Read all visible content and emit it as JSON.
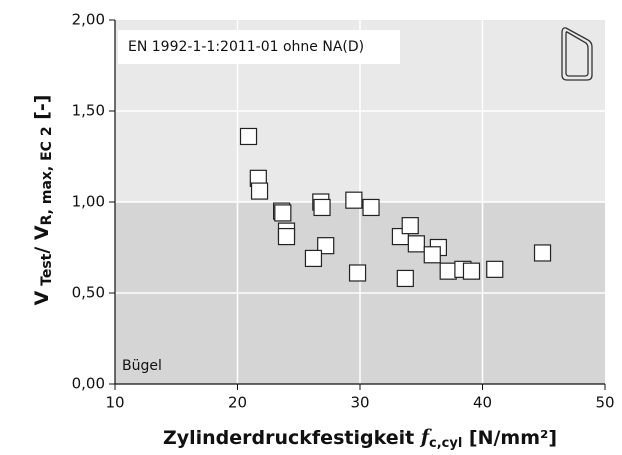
{
  "chart_data": {
    "type": "scatter",
    "annotations": [
      "EN 1992-1-1:2011-01 ohne NA(D)",
      "Bügel"
    ],
    "xlabel": [
      "Zylinderdruckfestigkeit ",
      "f",
      "c,cyl",
      "  [N/mm²]"
    ],
    "ylabel": [
      "V",
      " Test",
      "/ V",
      "R, max, EC 2",
      " [-]"
    ],
    "xlim": [
      10,
      50
    ],
    "xticks": [
      10,
      20,
      30,
      40,
      50
    ],
    "ylim": [
      0,
      2
    ],
    "yticks": [
      {
        "value": 0,
        "label": "0,00"
      },
      {
        "value": 0.5,
        "label": "0,50"
      },
      {
        "value": 1,
        "label": "1,00"
      },
      {
        "value": 1.5,
        "label": "1,50"
      },
      {
        "value": 2,
        "label": "2,00"
      }
    ],
    "grid": true,
    "regions": [
      {
        "from": 0,
        "to": 1,
        "color": "#d5d5d5"
      },
      {
        "from": 1,
        "to": 2,
        "color": "#e9e9e9"
      }
    ],
    "series": [
      {
        "color": "#ffffff",
        "x": [
          20.9,
          21.7,
          21.8,
          23.6,
          23.7,
          24.0,
          24.0,
          26.8,
          26.9,
          27.2,
          26.2,
          29.5,
          30.9,
          29.8,
          33.3,
          34.1,
          34.6,
          36.4,
          35.9,
          33.7,
          37.2,
          38.4,
          39.1,
          41.0,
          44.9
        ],
        "values": [
          1.36,
          1.13,
          1.06,
          0.95,
          0.94,
          0.84,
          0.81,
          1.0,
          0.97,
          0.76,
          0.69,
          1.01,
          0.97,
          0.61,
          0.81,
          0.87,
          0.77,
          0.75,
          0.71,
          0.58,
          0.62,
          0.63,
          0.62,
          0.63,
          0.72
        ]
      }
    ]
  }
}
